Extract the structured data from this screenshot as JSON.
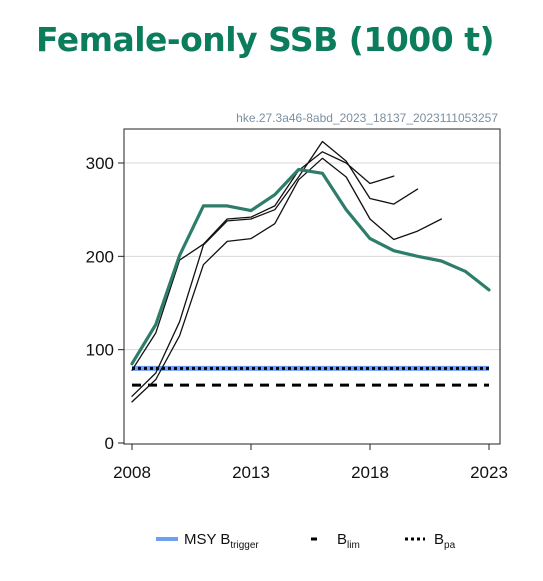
{
  "title": "Female-only SSB (1000 t)",
  "colors": {
    "title": "#0b7c5c",
    "assessment": "#2e7d6b",
    "retro": "#111111",
    "msy_btrigger": "#6f9ff2",
    "blim": "#000000",
    "bpa": "#000000",
    "grid": "#d8d8d8",
    "source": "#7a8fa0"
  },
  "chart_data": {
    "type": "line",
    "source_id": "hke.27.3a46-8abd_2023_18137_2023111053257",
    "xlim": [
      2008,
      2023
    ],
    "ylim": [
      0,
      320
    ],
    "xticks": [
      2008,
      2013,
      2018,
      2023
    ],
    "yticks": [
      0,
      100,
      200,
      300
    ],
    "grid": "horizontal",
    "legend_position": "bottom",
    "series": [
      {
        "role": "assessment",
        "x": [
          2008,
          2009,
          2010,
          2011,
          2012,
          2013,
          2014,
          2015,
          2016,
          2017,
          2018,
          2019,
          2020,
          2021,
          2022,
          2023
        ],
        "values": [
          85,
          127,
          201,
          254,
          254,
          249,
          266,
          293,
          289,
          250,
          219,
          206,
          200,
          195,
          184,
          164
        ]
      },
      {
        "role": "retrospective",
        "x": [
          2008,
          2009,
          2010,
          2011,
          2012,
          2013,
          2014,
          2015,
          2016,
          2017,
          2018,
          2019
        ],
        "values": [
          78,
          118,
          196,
          213,
          240,
          242,
          254,
          292,
          312,
          300,
          278,
          286
        ]
      },
      {
        "role": "retrospective",
        "x": [
          2008,
          2009,
          2010,
          2011,
          2012,
          2013,
          2014,
          2015,
          2016,
          2017,
          2018,
          2019,
          2020
        ],
        "values": [
          50,
          75,
          130,
          212,
          238,
          240,
          250,
          285,
          323,
          302,
          262,
          256,
          272
        ]
      },
      {
        "role": "retrospective",
        "x": [
          2008,
          2009,
          2010,
          2011,
          2012,
          2013,
          2014,
          2015,
          2016,
          2017,
          2018,
          2019,
          2020,
          2021
        ],
        "values": [
          44,
          68,
          115,
          191,
          216,
          219,
          235,
          282,
          305,
          285,
          240,
          218,
          227,
          240
        ]
      }
    ],
    "reference_points": [
      {
        "name": "MSY Btrigger",
        "label_main": "MSY B",
        "label_sub": "trigger",
        "value": 80,
        "style": "solid"
      },
      {
        "name": "Blim",
        "label_main": "B",
        "label_sub": "lim",
        "value": 62,
        "style": "dashed"
      },
      {
        "name": "Bpa",
        "label_main": "B",
        "label_sub": "pa",
        "value": 80,
        "style": "dotted"
      }
    ]
  }
}
